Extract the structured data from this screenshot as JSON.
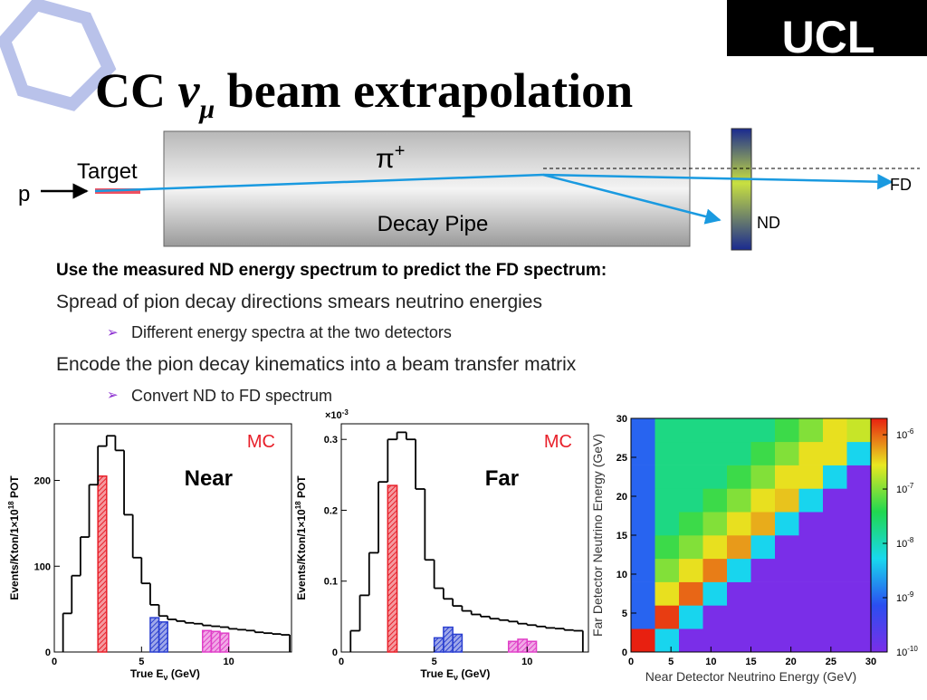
{
  "title": [
    "CC ",
    "ν",
    "μ",
    " beam extrapolation"
  ],
  "logo": "UCL",
  "diagram": {
    "proton": "p",
    "target": "Target",
    "pion": "π",
    "pion_charge": "+",
    "pipe": "Decay Pipe",
    "near": "ND",
    "far": "FD"
  },
  "lead": "Use the measured ND energy spectrum to predict the FD spectrum:",
  "bullets": [
    {
      "text": "Spread of pion decay directions smears neutrino energies",
      "sub": "Different energy spectra at the two detectors"
    },
    {
      "text": "Encode the pion decay kinematics into a beam transfer matrix",
      "sub": "Convert ND to FD spectrum"
    }
  ],
  "chart_data": [
    {
      "type": "histogram",
      "title": "Near",
      "annotation": "MC",
      "xlabel": [
        "True E",
        "ν",
        " (GeV)"
      ],
      "ylabel": [
        "Events/Kton/1×10",
        "18",
        " POT"
      ],
      "bins": [
        0.5,
        1,
        1.5,
        2,
        2.5,
        3,
        3.5,
        4,
        4.5,
        5,
        5.5,
        6,
        6.5,
        7,
        7.5,
        8,
        8.5,
        9,
        9.5,
        10,
        10.5,
        11,
        11.5,
        12,
        12.5,
        13,
        13.5
      ],
      "series": [
        {
          "color": "#000000",
          "hatch": false,
          "values": [
            45,
            89,
            134,
            195,
            240,
            252,
            235,
            160,
            110,
            80,
            55,
            42,
            38,
            36,
            34,
            33,
            31,
            30,
            29,
            27,
            26,
            25,
            23,
            22,
            21,
            20
          ]
        },
        {
          "color": "#e8202a",
          "hatch": true,
          "values": [
            null,
            null,
            null,
            null,
            205,
            null,
            null,
            null,
            null,
            null,
            null,
            null,
            null,
            null,
            null,
            null,
            null,
            null,
            null,
            null,
            null,
            null,
            null,
            null,
            null,
            null
          ]
        },
        {
          "color": "#2a3fd0",
          "hatch": true,
          "values": [
            null,
            null,
            null,
            null,
            null,
            null,
            null,
            null,
            null,
            null,
            40,
            35,
            null,
            null,
            null,
            null,
            null,
            null,
            null,
            null,
            null,
            null,
            null,
            null,
            null,
            null
          ]
        },
        {
          "color": "#e040c8",
          "hatch": true,
          "values": [
            null,
            null,
            null,
            null,
            null,
            null,
            null,
            null,
            null,
            null,
            null,
            null,
            null,
            null,
            null,
            null,
            25,
            24,
            22,
            null,
            null,
            null,
            null,
            null,
            null,
            null
          ]
        }
      ],
      "xlim": [
        0,
        13.6
      ],
      "ylim": [
        0,
        266
      ],
      "xticks": [
        0,
        5,
        10
      ],
      "yticks": [
        0,
        100,
        200
      ]
    },
    {
      "type": "histogram",
      "title": "Far",
      "annotation": "MC",
      "yscale": [
        "×10",
        "-3"
      ],
      "xlabel": [
        "True E",
        "ν",
        " (GeV)"
      ],
      "ylabel": [
        "Events/Kton/1×10",
        "18",
        " POT"
      ],
      "bins": [
        0.5,
        1,
        1.5,
        2,
        2.5,
        3,
        3.5,
        4,
        4.5,
        5,
        5.5,
        6,
        6.5,
        7,
        7.5,
        8,
        8.5,
        9,
        9.5,
        10,
        10.5,
        11,
        11.5,
        12,
        12.5,
        13
      ],
      "series": [
        {
          "color": "#000000",
          "hatch": false,
          "values": [
            0.03,
            0.08,
            0.14,
            0.24,
            0.3,
            0.31,
            0.3,
            0.23,
            0.13,
            0.09,
            0.075,
            0.065,
            0.058,
            0.053,
            0.05,
            0.047,
            0.045,
            0.043,
            0.04,
            0.038,
            0.036,
            0.034,
            0.033,
            0.031,
            0.03
          ]
        },
        {
          "color": "#e8202a",
          "hatch": true,
          "values": [
            null,
            null,
            null,
            null,
            0.235,
            null,
            null,
            null,
            null,
            null,
            null,
            null,
            null,
            null,
            null,
            null,
            null,
            null,
            null,
            null,
            null,
            null,
            null,
            null,
            null
          ]
        },
        {
          "color": "#2a3fd0",
          "hatch": true,
          "values": [
            null,
            null,
            null,
            null,
            null,
            null,
            null,
            null,
            null,
            0.02,
            0.035,
            0.025,
            null,
            null,
            null,
            null,
            null,
            null,
            null,
            null,
            null,
            null,
            null,
            null,
            null
          ]
        },
        {
          "color": "#e040c8",
          "hatch": true,
          "values": [
            null,
            null,
            null,
            null,
            null,
            null,
            null,
            null,
            null,
            null,
            null,
            null,
            null,
            null,
            null,
            null,
            null,
            0.015,
            0.018,
            0.015,
            null,
            null,
            null,
            null,
            null
          ]
        }
      ],
      "xlim": [
        0,
        13.3
      ],
      "ylim": [
        0,
        0.322
      ],
      "xticks": [
        0,
        5,
        10
      ],
      "yticks": [
        0,
        0.1,
        0.2,
        0.3
      ]
    },
    {
      "type": "heatmap",
      "xlabel": "Near Detector Neutrino Energy (GeV)",
      "ylabel": "Far Detector Neutrino Energy (GeV)",
      "xbins": [
        0,
        3,
        6,
        9,
        12,
        15,
        18,
        21,
        24,
        27,
        30
      ],
      "ybins": [
        0,
        3,
        6,
        9,
        12,
        15,
        18,
        21,
        24,
        27,
        30
      ],
      "z": [
        [
          2e-06,
          5e-09,
          1e-10,
          1e-10,
          1e-10,
          1e-10,
          1e-10,
          1e-10,
          1e-10,
          1e-10
        ],
        [
          1e-09,
          1.5e-06,
          5e-09,
          1e-10,
          1e-10,
          1e-10,
          1e-10,
          1e-10,
          1e-10,
          1e-10
        ],
        [
          1e-09,
          3e-07,
          1e-06,
          5e-09,
          1e-10,
          1e-10,
          1e-10,
          1e-10,
          1e-10,
          1e-10
        ],
        [
          1e-09,
          1e-07,
          3e-07,
          8e-07,
          5e-09,
          1e-10,
          1e-10,
          1e-10,
          1e-10,
          1e-10
        ],
        [
          1e-09,
          5e-08,
          1e-07,
          3e-07,
          6e-07,
          5e-09,
          1e-10,
          1e-10,
          1e-10,
          1e-10
        ],
        [
          1e-09,
          2e-08,
          5e-08,
          1e-07,
          3e-07,
          5e-07,
          5e-09,
          1e-10,
          1e-10,
          1e-10
        ],
        [
          1e-09,
          2e-08,
          2e-08,
          5e-08,
          1e-07,
          3e-07,
          4e-07,
          5e-09,
          1e-10,
          1e-10
        ],
        [
          1e-09,
          2e-08,
          2e-08,
          2e-08,
          5e-08,
          1e-07,
          3e-07,
          3e-07,
          5e-09,
          1e-10
        ],
        [
          1e-09,
          2e-08,
          2e-08,
          2e-08,
          2e-08,
          5e-08,
          1e-07,
          3e-07,
          3e-07,
          5e-09
        ],
        [
          1e-09,
          2e-08,
          2e-08,
          2e-08,
          2e-08,
          2e-08,
          5e-08,
          1e-07,
          3e-07,
          2e-07
        ]
      ],
      "colorscale": [
        "#7a2ee8",
        "#2b4ef0",
        "#18d8ee",
        "#20d850",
        "#e8e820",
        "#e82010"
      ],
      "zscale": "log",
      "zlim": [
        1e-10,
        2e-06
      ],
      "zticks": [
        {
          "value": 1e-10,
          "label": "10",
          "exponent": "-10"
        },
        {
          "value": 1e-09,
          "label": "10",
          "exponent": "-9"
        },
        {
          "value": 1e-08,
          "label": "10",
          "exponent": "-8"
        },
        {
          "value": 1e-07,
          "label": "10",
          "exponent": "-7"
        },
        {
          "value": 1e-06,
          "label": "10",
          "exponent": "-6"
        }
      ],
      "xlim": [
        0,
        30
      ],
      "ylim": [
        0,
        30
      ],
      "xticks": [
        0,
        5,
        10,
        15,
        20,
        25,
        30
      ],
      "yticks": [
        0,
        5,
        10,
        15,
        20,
        25,
        30
      ]
    }
  ]
}
